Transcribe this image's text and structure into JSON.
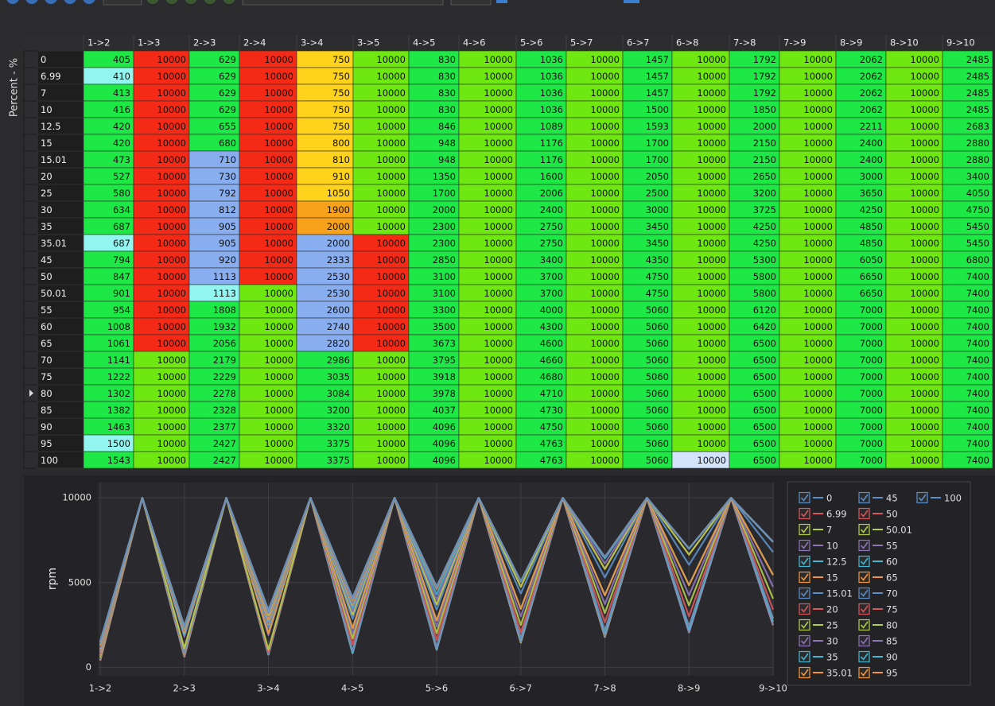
{
  "table": {
    "axis_label": "Percent - %",
    "columns": [
      "1->2",
      "1->3",
      "2->3",
      "2->4",
      "3->4",
      "3->5",
      "4->5",
      "4->6",
      "5->6",
      "5->7",
      "6->7",
      "6->8",
      "7->8",
      "7->9",
      "8->9",
      "8->10",
      "9->10"
    ],
    "rows": [
      {
        "label": "0",
        "values": [
          405,
          10000,
          629,
          10000,
          750,
          10000,
          830,
          10000,
          1036,
          10000,
          1457,
          10000,
          1792,
          10000,
          2062,
          10000,
          2485
        ]
      },
      {
        "label": "6.99",
        "values": [
          410,
          10000,
          629,
          10000,
          750,
          10000,
          830,
          10000,
          1036,
          10000,
          1457,
          10000,
          1792,
          10000,
          2062,
          10000,
          2485
        ]
      },
      {
        "label": "7",
        "values": [
          413,
          10000,
          629,
          10000,
          750,
          10000,
          830,
          10000,
          1036,
          10000,
          1457,
          10000,
          1792,
          10000,
          2062,
          10000,
          2485
        ]
      },
      {
        "label": "10",
        "values": [
          416,
          10000,
          629,
          10000,
          750,
          10000,
          830,
          10000,
          1036,
          10000,
          1500,
          10000,
          1850,
          10000,
          2062,
          10000,
          2485
        ]
      },
      {
        "label": "12.5",
        "values": [
          420,
          10000,
          655,
          10000,
          750,
          10000,
          846,
          10000,
          1089,
          10000,
          1593,
          10000,
          2000,
          10000,
          2211,
          10000,
          2683
        ]
      },
      {
        "label": "15",
        "values": [
          420,
          10000,
          680,
          10000,
          800,
          10000,
          948,
          10000,
          1176,
          10000,
          1700,
          10000,
          2150,
          10000,
          2400,
          10000,
          2880
        ]
      },
      {
        "label": "15.01",
        "values": [
          473,
          10000,
          710,
          10000,
          810,
          10000,
          948,
          10000,
          1176,
          10000,
          1700,
          10000,
          2150,
          10000,
          2400,
          10000,
          2880
        ]
      },
      {
        "label": "20",
        "values": [
          527,
          10000,
          730,
          10000,
          910,
          10000,
          1350,
          10000,
          1600,
          10000,
          2050,
          10000,
          2650,
          10000,
          3000,
          10000,
          3400
        ]
      },
      {
        "label": "25",
        "values": [
          580,
          10000,
          792,
          10000,
          1050,
          10000,
          1700,
          10000,
          2006,
          10000,
          2500,
          10000,
          3200,
          10000,
          3650,
          10000,
          4050
        ]
      },
      {
        "label": "30",
        "values": [
          634,
          10000,
          812,
          10000,
          1900,
          10000,
          2000,
          10000,
          2400,
          10000,
          3000,
          10000,
          3725,
          10000,
          4250,
          10000,
          4750
        ]
      },
      {
        "label": "35",
        "values": [
          687,
          10000,
          905,
          10000,
          2000,
          10000,
          2300,
          10000,
          2750,
          10000,
          3450,
          10000,
          4250,
          10000,
          4850,
          10000,
          5450
        ]
      },
      {
        "label": "35.01",
        "values": [
          687,
          10000,
          905,
          10000,
          2000,
          10000,
          2300,
          10000,
          2750,
          10000,
          3450,
          10000,
          4250,
          10000,
          4850,
          10000,
          5450
        ]
      },
      {
        "label": "45",
        "values": [
          794,
          10000,
          920,
          10000,
          2333,
          10000,
          2850,
          10000,
          3400,
          10000,
          4350,
          10000,
          5300,
          10000,
          6050,
          10000,
          6800
        ]
      },
      {
        "label": "50",
        "values": [
          847,
          10000,
          1113,
          10000,
          2530,
          10000,
          3100,
          10000,
          3700,
          10000,
          4750,
          10000,
          5800,
          10000,
          6650,
          10000,
          7400
        ]
      },
      {
        "label": "50.01",
        "values": [
          901,
          10000,
          1113,
          10000,
          2530,
          10000,
          3100,
          10000,
          3700,
          10000,
          4750,
          10000,
          5800,
          10000,
          6650,
          10000,
          7400
        ]
      },
      {
        "label": "55",
        "values": [
          954,
          10000,
          1808,
          10000,
          2600,
          10000,
          3300,
          10000,
          4000,
          10000,
          5060,
          10000,
          6120,
          10000,
          7000,
          10000,
          7400
        ]
      },
      {
        "label": "60",
        "values": [
          1008,
          10000,
          1932,
          10000,
          2740,
          10000,
          3500,
          10000,
          4300,
          10000,
          5060,
          10000,
          6420,
          10000,
          7000,
          10000,
          7400
        ]
      },
      {
        "label": "65",
        "values": [
          1061,
          10000,
          2056,
          10000,
          2820,
          10000,
          3673,
          10000,
          4600,
          10000,
          5060,
          10000,
          6500,
          10000,
          7000,
          10000,
          7400
        ]
      },
      {
        "label": "70",
        "values": [
          1141,
          10000,
          2179,
          10000,
          2986,
          10000,
          3795,
          10000,
          4660,
          10000,
          5060,
          10000,
          6500,
          10000,
          7000,
          10000,
          7400
        ]
      },
      {
        "label": "75",
        "values": [
          1222,
          10000,
          2229,
          10000,
          3035,
          10000,
          3918,
          10000,
          4680,
          10000,
          5060,
          10000,
          6500,
          10000,
          7000,
          10000,
          7400
        ]
      },
      {
        "label": "80",
        "values": [
          1302,
          10000,
          2278,
          10000,
          3084,
          10000,
          3978,
          10000,
          4710,
          10000,
          5060,
          10000,
          6500,
          10000,
          7000,
          10000,
          7400
        ]
      },
      {
        "label": "85",
        "values": [
          1382,
          10000,
          2328,
          10000,
          3200,
          10000,
          4037,
          10000,
          4730,
          10000,
          5060,
          10000,
          6500,
          10000,
          7000,
          10000,
          7400
        ]
      },
      {
        "label": "90",
        "values": [
          1463,
          10000,
          2377,
          10000,
          3320,
          10000,
          4096,
          10000,
          4750,
          10000,
          5060,
          10000,
          6500,
          10000,
          7000,
          10000,
          7400
        ]
      },
      {
        "label": "95",
        "values": [
          1500,
          10000,
          2427,
          10000,
          3375,
          10000,
          4096,
          10000,
          4763,
          10000,
          5060,
          10000,
          6500,
          10000,
          7000,
          10000,
          7400
        ]
      },
      {
        "label": "100",
        "values": [
          1543,
          10000,
          2427,
          10000,
          3375,
          10000,
          4096,
          10000,
          4763,
          10000,
          5060,
          10000,
          6500,
          10000,
          7000,
          10000,
          7400
        ]
      }
    ],
    "cell_colors": [
      [
        "#1de845",
        "#f42a17",
        "#1de845",
        "#f42a17",
        "#ffd21c",
        "#6ee810",
        "#1de845",
        "#6ee810",
        "#1de845",
        "#6ee810",
        "#1de845",
        "#6ee810",
        "#1de845",
        "#6ee810",
        "#1de845",
        "#6ee810",
        "#1de845"
      ],
      [
        "#93f5f0",
        "#f42a17",
        "#1de845",
        "#f42a17",
        "#ffd21c",
        "#6ee810",
        "#1de845",
        "#6ee810",
        "#1de845",
        "#6ee810",
        "#1de845",
        "#6ee810",
        "#1de845",
        "#6ee810",
        "#1de845",
        "#6ee810",
        "#1de845"
      ],
      [
        "#1de845",
        "#f42a17",
        "#1de845",
        "#f42a17",
        "#ffd21c",
        "#6ee810",
        "#1de845",
        "#6ee810",
        "#1de845",
        "#6ee810",
        "#1de845",
        "#6ee810",
        "#1de845",
        "#6ee810",
        "#1de845",
        "#6ee810",
        "#1de845"
      ],
      [
        "#1de845",
        "#f42a17",
        "#1de845",
        "#f42a17",
        "#ffd21c",
        "#6ee810",
        "#1de845",
        "#6ee810",
        "#1de845",
        "#6ee810",
        "#1de845",
        "#6ee810",
        "#1de845",
        "#6ee810",
        "#1de845",
        "#6ee810",
        "#1de845"
      ],
      [
        "#1de845",
        "#f42a17",
        "#1de845",
        "#f42a17",
        "#ffd21c",
        "#6ee810",
        "#1de845",
        "#6ee810",
        "#1de845",
        "#6ee810",
        "#1de845",
        "#6ee810",
        "#1de845",
        "#6ee810",
        "#1de845",
        "#6ee810",
        "#1de845"
      ],
      [
        "#1de845",
        "#f42a17",
        "#1de845",
        "#f42a17",
        "#ffd21c",
        "#6ee810",
        "#1de845",
        "#6ee810",
        "#1de845",
        "#6ee810",
        "#1de845",
        "#6ee810",
        "#1de845",
        "#6ee810",
        "#1de845",
        "#6ee810",
        "#1de845"
      ],
      [
        "#1de845",
        "#f42a17",
        "#88aef0",
        "#f42a17",
        "#ffd21c",
        "#6ee810",
        "#1de845",
        "#6ee810",
        "#1de845",
        "#6ee810",
        "#1de845",
        "#6ee810",
        "#1de845",
        "#6ee810",
        "#1de845",
        "#6ee810",
        "#1de845"
      ],
      [
        "#1de845",
        "#f42a17",
        "#88aef0",
        "#f42a17",
        "#ffd21c",
        "#6ee810",
        "#1de845",
        "#6ee810",
        "#1de845",
        "#6ee810",
        "#1de845",
        "#6ee810",
        "#1de845",
        "#6ee810",
        "#1de845",
        "#6ee810",
        "#1de845"
      ],
      [
        "#1de845",
        "#f42a17",
        "#88aef0",
        "#f42a17",
        "#ffd21c",
        "#6ee810",
        "#1de845",
        "#6ee810",
        "#1de845",
        "#6ee810",
        "#1de845",
        "#6ee810",
        "#1de845",
        "#6ee810",
        "#1de845",
        "#6ee810",
        "#1de845"
      ],
      [
        "#1de845",
        "#f42a17",
        "#88aef0",
        "#f42a17",
        "#f8a11b",
        "#6ee810",
        "#1de845",
        "#6ee810",
        "#1de845",
        "#6ee810",
        "#1de845",
        "#6ee810",
        "#1de845",
        "#6ee810",
        "#1de845",
        "#6ee810",
        "#1de845"
      ],
      [
        "#1de845",
        "#f42a17",
        "#88aef0",
        "#f42a17",
        "#f8a11b",
        "#6ee810",
        "#1de845",
        "#6ee810",
        "#1de845",
        "#6ee810",
        "#1de845",
        "#6ee810",
        "#1de845",
        "#6ee810",
        "#1de845",
        "#6ee810",
        "#1de845"
      ],
      [
        "#93f5f0",
        "#f42a17",
        "#88aef0",
        "#f42a17",
        "#88aef0",
        "#f42a17",
        "#1de845",
        "#6ee810",
        "#1de845",
        "#6ee810",
        "#1de845",
        "#6ee810",
        "#1de845",
        "#6ee810",
        "#1de845",
        "#6ee810",
        "#1de845"
      ],
      [
        "#1de845",
        "#f42a17",
        "#88aef0",
        "#f42a17",
        "#88aef0",
        "#f42a17",
        "#1de845",
        "#6ee810",
        "#1de845",
        "#6ee810",
        "#1de845",
        "#6ee810",
        "#1de845",
        "#6ee810",
        "#1de845",
        "#6ee810",
        "#1de845"
      ],
      [
        "#1de845",
        "#f42a17",
        "#88aef0",
        "#f42a17",
        "#88aef0",
        "#f42a17",
        "#1de845",
        "#6ee810",
        "#1de845",
        "#6ee810",
        "#1de845",
        "#6ee810",
        "#1de845",
        "#6ee810",
        "#1de845",
        "#6ee810",
        "#1de845"
      ],
      [
        "#1de845",
        "#f42a17",
        "#93f5f0",
        "#6ee810",
        "#88aef0",
        "#f42a17",
        "#1de845",
        "#6ee810",
        "#1de845",
        "#6ee810",
        "#1de845",
        "#6ee810",
        "#1de845",
        "#6ee810",
        "#1de845",
        "#6ee810",
        "#1de845"
      ],
      [
        "#1de845",
        "#f42a17",
        "#1de845",
        "#6ee810",
        "#88aef0",
        "#f42a17",
        "#1de845",
        "#6ee810",
        "#1de845",
        "#6ee810",
        "#1de845",
        "#6ee810",
        "#1de845",
        "#6ee810",
        "#1de845",
        "#6ee810",
        "#1de845"
      ],
      [
        "#1de845",
        "#f42a17",
        "#1de845",
        "#6ee810",
        "#88aef0",
        "#f42a17",
        "#1de845",
        "#6ee810",
        "#1de845",
        "#6ee810",
        "#1de845",
        "#6ee810",
        "#1de845",
        "#6ee810",
        "#1de845",
        "#6ee810",
        "#1de845"
      ],
      [
        "#1de845",
        "#f42a17",
        "#1de845",
        "#6ee810",
        "#88aef0",
        "#f42a17",
        "#1de845",
        "#6ee810",
        "#1de845",
        "#6ee810",
        "#1de845",
        "#6ee810",
        "#1de845",
        "#6ee810",
        "#1de845",
        "#6ee810",
        "#1de845"
      ],
      [
        "#1de845",
        "#6ee810",
        "#1de845",
        "#6ee810",
        "#1de845",
        "#6ee810",
        "#1de845",
        "#6ee810",
        "#1de845",
        "#6ee810",
        "#1de845",
        "#6ee810",
        "#1de845",
        "#6ee810",
        "#1de845",
        "#6ee810",
        "#1de845"
      ],
      [
        "#1de845",
        "#6ee810",
        "#1de845",
        "#6ee810",
        "#1de845",
        "#6ee810",
        "#1de845",
        "#6ee810",
        "#1de845",
        "#6ee810",
        "#1de845",
        "#6ee810",
        "#1de845",
        "#6ee810",
        "#1de845",
        "#6ee810",
        "#1de845"
      ],
      [
        "#1de845",
        "#6ee810",
        "#1de845",
        "#6ee810",
        "#1de845",
        "#6ee810",
        "#1de845",
        "#6ee810",
        "#1de845",
        "#6ee810",
        "#1de845",
        "#6ee810",
        "#1de845",
        "#6ee810",
        "#1de845",
        "#6ee810",
        "#1de845"
      ],
      [
        "#1de845",
        "#6ee810",
        "#1de845",
        "#6ee810",
        "#1de845",
        "#6ee810",
        "#1de845",
        "#6ee810",
        "#1de845",
        "#6ee810",
        "#1de845",
        "#6ee810",
        "#1de845",
        "#6ee810",
        "#1de845",
        "#6ee810",
        "#1de845"
      ],
      [
        "#1de845",
        "#6ee810",
        "#1de845",
        "#6ee810",
        "#1de845",
        "#6ee810",
        "#1de845",
        "#6ee810",
        "#1de845",
        "#6ee810",
        "#1de845",
        "#6ee810",
        "#1de845",
        "#6ee810",
        "#1de845",
        "#6ee810",
        "#1de845"
      ],
      [
        "#93f5f0",
        "#6ee810",
        "#1de845",
        "#6ee810",
        "#1de845",
        "#6ee810",
        "#1de845",
        "#6ee810",
        "#1de845",
        "#6ee810",
        "#1de845",
        "#6ee810",
        "#1de845",
        "#6ee810",
        "#1de845",
        "#6ee810",
        "#1de845"
      ],
      [
        "#1de845",
        "#6ee810",
        "#1de845",
        "#6ee810",
        "#1de845",
        "#6ee810",
        "#1de845",
        "#6ee810",
        "#1de845",
        "#6ee810",
        "#1de845",
        "#d2e3fa",
        "#1de845",
        "#6ee810",
        "#1de845",
        "#6ee810",
        "#1de845"
      ]
    ]
  },
  "chart": {
    "type": "line",
    "y_label": "rpm",
    "ylim": [
      -500,
      10900
    ],
    "yticks": [
      0,
      5000,
      10000
    ],
    "grid": true,
    "palette": [
      "#5b8fc8",
      "#d9575a",
      "#b3cf4a",
      "#8e74b8",
      "#45b7d3",
      "#f3963a"
    ],
    "legend": "right"
  }
}
